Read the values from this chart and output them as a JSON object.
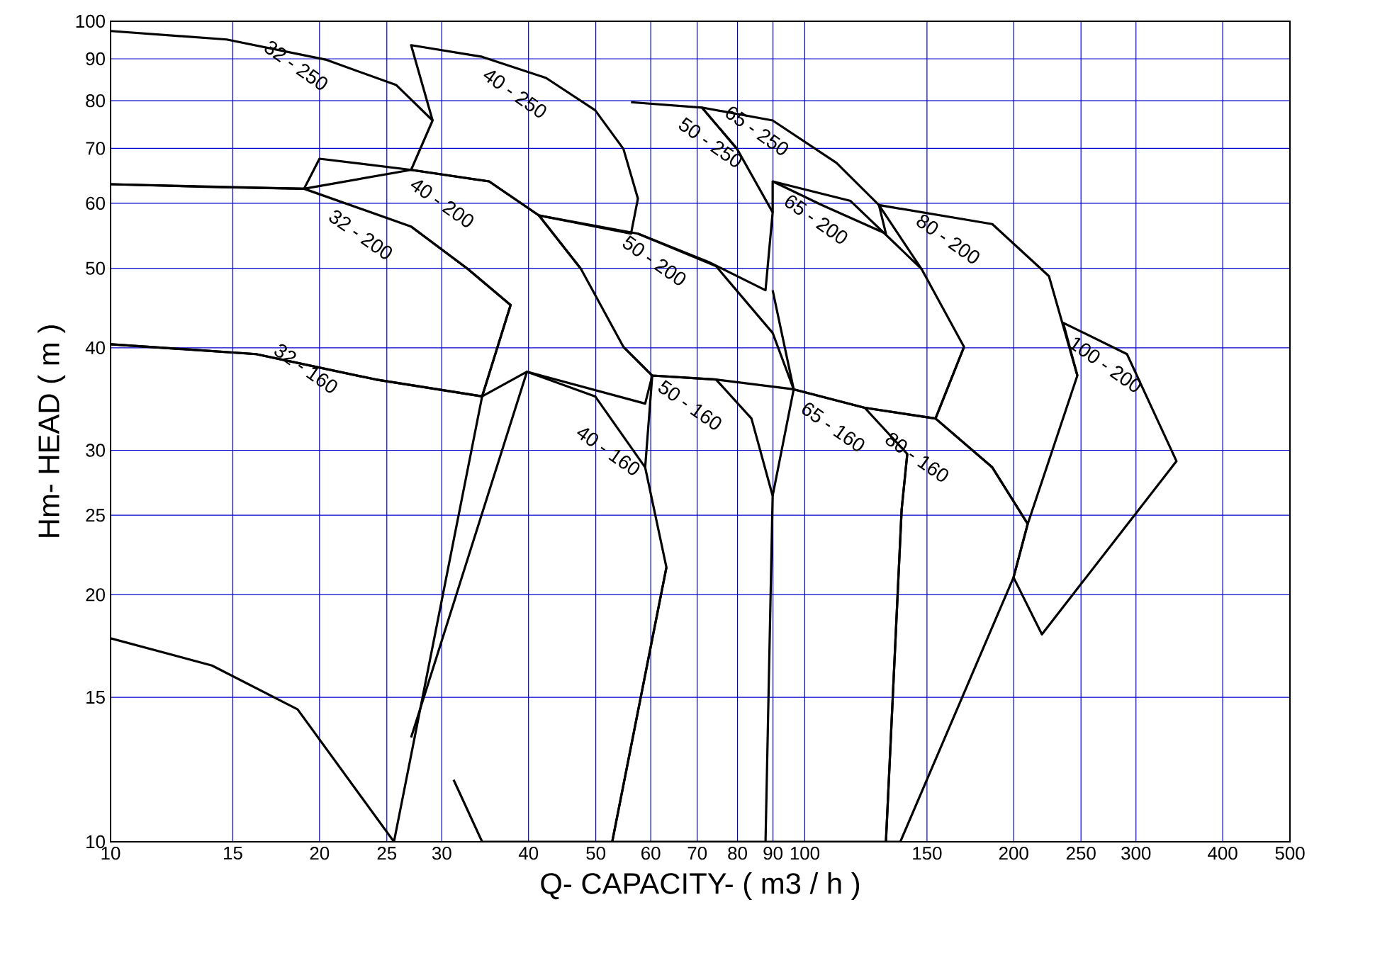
{
  "chart_data": {
    "type": "line",
    "xlabel": "Q- CAPACITY- ( m3 / h )",
    "ylabel": "Hm- HEAD ( m )",
    "log": "xy",
    "grid": true,
    "xlim": [
      10,
      500
    ],
    "ylim": [
      10,
      100
    ],
    "xticks": [
      10,
      15,
      20,
      25,
      30,
      40,
      50,
      60,
      70,
      80,
      90,
      100,
      150,
      200,
      250,
      300,
      400,
      500
    ],
    "yticks": [
      10,
      15,
      20,
      25,
      30,
      40,
      50,
      60,
      70,
      80,
      90,
      100
    ],
    "series": [
      {
        "name": "32 - 250",
        "color": "#000000",
        "x": [
          10,
          14.7,
          20.4,
          25.8,
          29.1,
          27.1,
          19.0,
          14.0,
          10
        ],
        "values": [
          97.3,
          95.0,
          89.8,
          83.6,
          75.7,
          65.9,
          62.5,
          62.8,
          63.3
        ]
      },
      {
        "name": "40 - 250",
        "color": "#000000",
        "x": [
          29.1,
          27.1,
          34.3,
          42.4,
          49.9,
          54.8,
          57.5,
          56.2,
          41.4,
          35.1,
          27.1
        ],
        "values": [
          75.7,
          93.5,
          90.5,
          85.3,
          77.9,
          69.9,
          60.8,
          55.1,
          58.0,
          63.8,
          65.9
        ]
      },
      {
        "name": "50 - 250",
        "color": "#000000",
        "x": [
          56.2,
          71.1,
          79.9,
          89.9,
          87.8,
          72.7,
          57.5
        ],
        "values": [
          79.7,
          78.5,
          69.9,
          58.5,
          47.0,
          50.9,
          55.1
        ]
      },
      {
        "name": "65 - 250",
        "color": "#000000",
        "x": [
          79.9,
          71.1,
          89.9,
          111.1,
          127.9,
          130.9,
          105.9,
          89.9
        ],
        "values": [
          69.9,
          78.5,
          75.7,
          67.2,
          59.7,
          55.1,
          59.7,
          63.8
        ]
      },
      {
        "name": "32 - 200",
        "color": "#000000",
        "x": [
          10,
          19.0,
          27.1,
          32.7,
          37.7,
          34.3,
          24.1,
          16.2,
          10
        ],
        "values": [
          63.3,
          62.5,
          56.2,
          49.9,
          45.1,
          34.9,
          36.6,
          39.3,
          40.4
        ]
      },
      {
        "name": "40 - 200",
        "color": "#000000",
        "x": [
          19.0,
          20.0,
          27.1,
          35.1,
          41.4,
          47.6,
          54.8,
          60.3,
          58.9,
          39.8,
          34.3,
          37.7,
          32.7,
          27.1
        ],
        "values": [
          62.5,
          68.0,
          65.9,
          63.8,
          58.0,
          49.9,
          40.1,
          37.0,
          34.2,
          37.4,
          34.9,
          45.1,
          49.9,
          56.2
        ]
      },
      {
        "name": "50 - 200",
        "color": "#000000",
        "x": [
          47.6,
          41.4,
          57.5,
          74.5,
          89.9,
          96.4,
          74.5,
          60.3,
          54.8
        ],
        "values": [
          49.9,
          58.0,
          55.1,
          50.3,
          41.7,
          35.6,
          36.6,
          37.0,
          40.1
        ]
      },
      {
        "name": "65 - 200",
        "color": "#000000",
        "x": [
          89.9,
          89.9,
          116.4,
          147.3,
          169.6,
          154.3,
          122.0,
          96.4,
          89.9
        ],
        "values": [
          58.5,
          63.8,
          60.4,
          49.9,
          40.1,
          32.8,
          33.8,
          35.6,
          47.0
        ]
      },
      {
        "name": "80 - 200",
        "color": "#000000",
        "x": [
          147.3,
          127.9,
          186.3,
          224.8,
          247.0,
          209.5,
          186.3,
          154.3,
          169.6
        ],
        "values": [
          49.9,
          59.7,
          56.6,
          48.9,
          37.0,
          24.4,
          28.6,
          32.8,
          40.1
        ]
      },
      {
        "name": "100 - 200",
        "color": "#000000",
        "x": [
          247.0,
          235.7,
          291.2,
          343.2,
          219.6,
          199.9,
          209.5
        ],
        "values": [
          37.0,
          42.9,
          39.3,
          29.1,
          17.9,
          21.0,
          24.4
        ]
      },
      {
        "name": "32 - 160",
        "color": "#000000",
        "x": [
          10,
          16.2,
          24.1,
          34.3,
          25.6,
          18.6,
          14.0,
          10
        ],
        "values": [
          40.4,
          39.3,
          36.6,
          34.9,
          10,
          14.5,
          16.4,
          17.7
        ]
      },
      {
        "name": "40 - 160",
        "color": "#000000",
        "x": [
          27.1,
          39.8,
          49.9,
          58.9,
          63.2,
          52.8,
          34.3,
          31.2
        ],
        "values": [
          13.4,
          37.4,
          34.9,
          28.6,
          21.6,
          10,
          10,
          11.9
        ]
      },
      {
        "name": "50 - 160",
        "color": "#000000",
        "x": [
          58.9,
          60.3,
          74.5,
          83.8,
          89.9,
          87.8,
          52.8,
          63.2
        ],
        "values": [
          28.6,
          37.0,
          36.6,
          32.8,
          26.4,
          10,
          10,
          21.6
        ]
      },
      {
        "name": "65 - 160",
        "color": "#000000",
        "x": [
          89.9,
          96.4,
          122.0,
          140.5,
          137.9,
          130.9,
          87.8
        ],
        "values": [
          26.4,
          35.6,
          33.8,
          29.7,
          25.4,
          10,
          10
        ]
      },
      {
        "name": "80 - 160",
        "color": "#000000",
        "x": [
          122.0,
          154.3,
          186.3,
          209.5,
          199.9,
          137.3,
          130.9,
          137.9,
          140.5
        ],
        "values": [
          33.8,
          32.8,
          28.6,
          24.4,
          21.0,
          10,
          10,
          25.4,
          29.7
        ]
      }
    ]
  }
}
